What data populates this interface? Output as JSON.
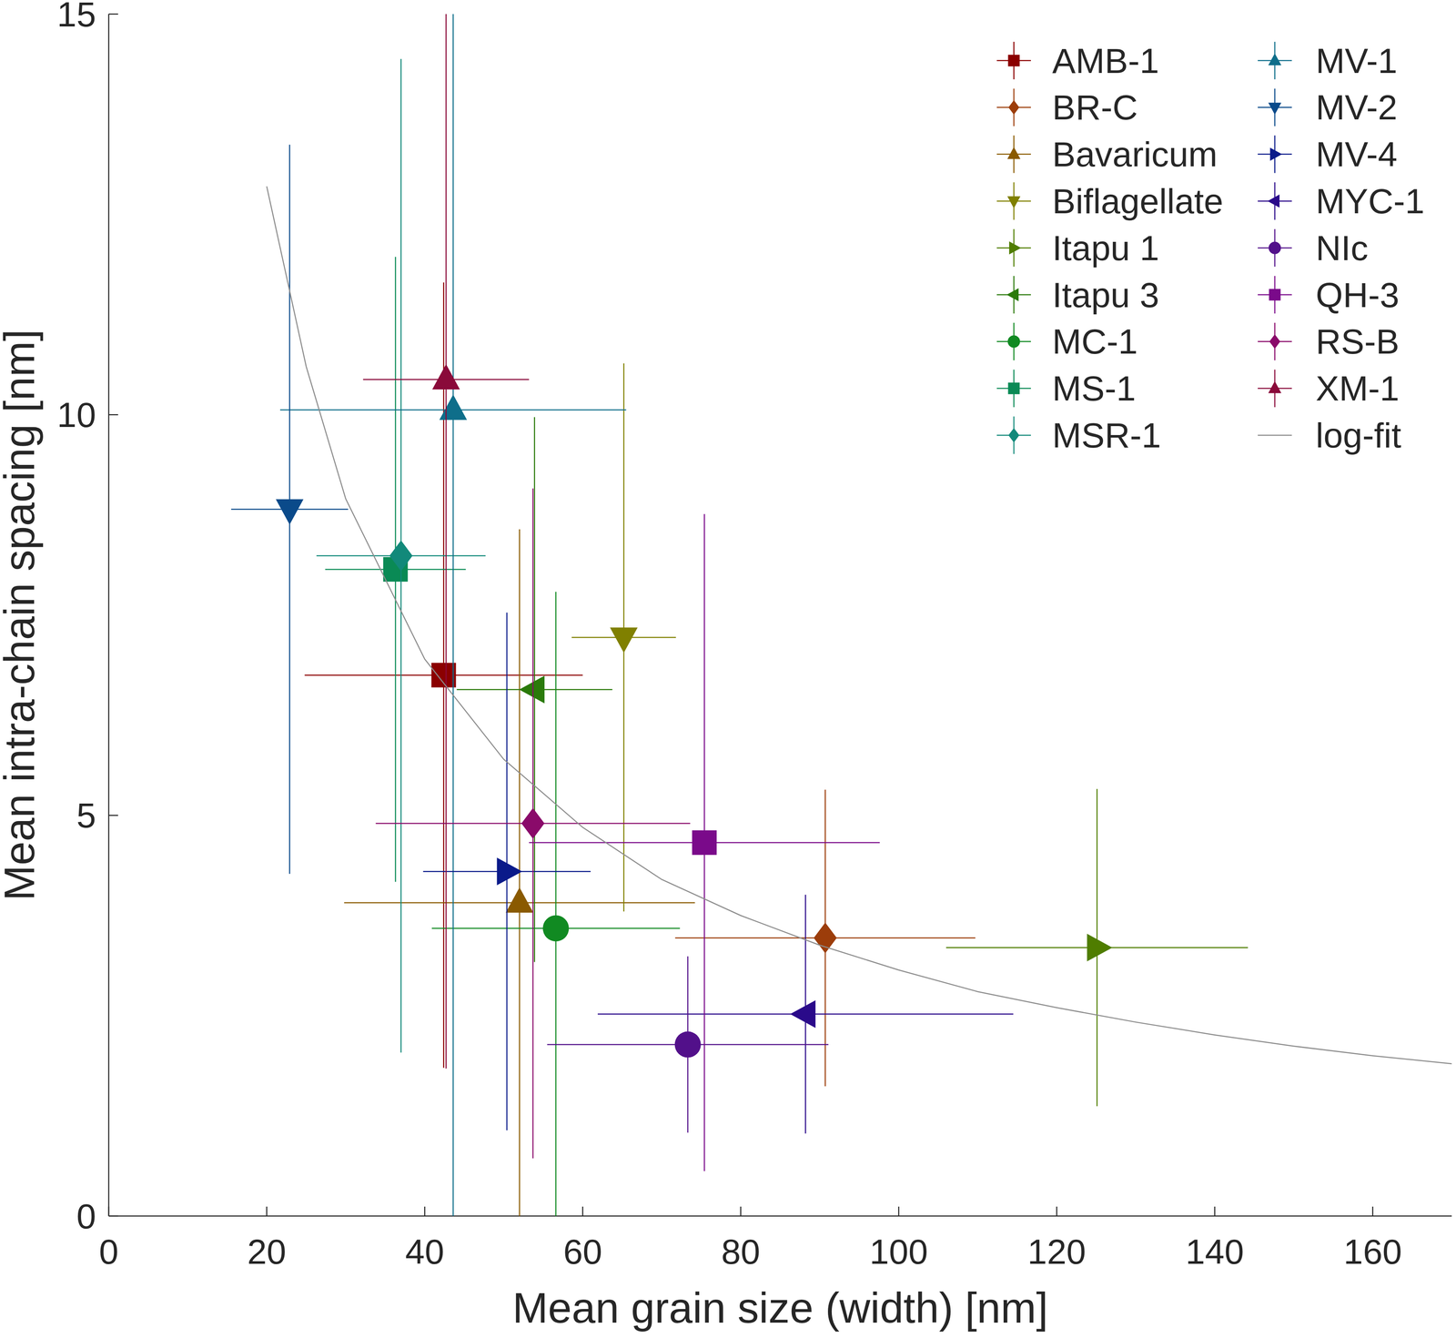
{
  "chart_data": {
    "type": "scatter",
    "x_label": "Mean grain size (width) [nm]",
    "y_label": "Mean intra-chain spacing [nm]",
    "xlim": [
      0,
      170
    ],
    "ylim": [
      0,
      15
    ],
    "xticks": [
      0,
      20,
      40,
      60,
      80,
      100,
      120,
      140,
      160
    ],
    "yticks": [
      0,
      5,
      10,
      15
    ],
    "legend": "top-right",
    "series": [
      {
        "name": "AMB-1",
        "color": "#8b0000",
        "marker": "square",
        "x": [
          42.4
        ],
        "values": [
          6.75
        ],
        "x_errors": [
          17.6
        ],
        "errors": [
          4.9
        ]
      },
      {
        "name": "BR-C",
        "color": "#9c3d0a",
        "marker": "diamond",
        "x": [
          90.7
        ],
        "values": [
          3.47
        ],
        "x_errors": [
          19.0
        ],
        "errors": [
          1.85
        ]
      },
      {
        "name": "Bavaricum",
        "color": "#8a5a00",
        "marker": "triangle-up",
        "x": [
          52.0
        ],
        "values": [
          3.91
        ],
        "x_errors": [
          22.2
        ],
        "errors": [
          4.66
        ]
      },
      {
        "name": "Biflagellate",
        "color": "#808000",
        "marker": "triangle-down",
        "x": [
          65.2
        ],
        "values": [
          7.22
        ],
        "x_errors": [
          6.6
        ],
        "errors": [
          3.42
        ]
      },
      {
        "name": "Itapu 1",
        "color": "#4f7d00",
        "marker": "triangle-right",
        "x": [
          125.1
        ],
        "values": [
          3.35
        ],
        "x_errors": [
          19.1
        ],
        "errors": [
          1.98
        ]
      },
      {
        "name": "Itapu 3",
        "color": "#2a7a0a",
        "marker": "triangle-left",
        "x": [
          53.9
        ],
        "values": [
          6.57
        ],
        "x_errors": [
          9.85
        ],
        "errors": [
          3.4
        ]
      },
      {
        "name": "MC-1",
        "color": "#118a22",
        "marker": "circle",
        "x": [
          56.6
        ],
        "values": [
          3.59
        ],
        "x_errors": [
          15.7
        ],
        "errors": [
          4.2
        ]
      },
      {
        "name": "MS-1",
        "color": "#0a8a55",
        "marker": "square",
        "x": [
          36.3
        ],
        "values": [
          8.07
        ],
        "x_errors": [
          8.9
        ],
        "errors": [
          3.9
        ]
      },
      {
        "name": "MSR-1",
        "color": "#12897a",
        "marker": "diamond",
        "x": [
          37.0
        ],
        "values": [
          8.24
        ],
        "x_errors": [
          10.7
        ],
        "errors": [
          6.2
        ]
      },
      {
        "name": "MV-1",
        "color": "#0e6e8a",
        "marker": "triangle-up",
        "x": [
          43.6
        ],
        "values": [
          10.06
        ],
        "x_errors": [
          21.9
        ],
        "errors": [
          10.5
        ]
      },
      {
        "name": "MV-2",
        "color": "#0a4a8a",
        "marker": "triangle-down",
        "x": [
          22.9
        ],
        "values": [
          8.82
        ],
        "x_errors": [
          7.4
        ],
        "errors": [
          4.55
        ]
      },
      {
        "name": "MV-4",
        "color": "#0a1a8a",
        "marker": "triangle-right",
        "x": [
          50.4
        ],
        "values": [
          4.3
        ],
        "x_errors": [
          10.6
        ],
        "errors": [
          3.23
        ]
      },
      {
        "name": "MYC-1",
        "color": "#2a0a8a",
        "marker": "triangle-left",
        "x": [
          88.2
        ],
        "values": [
          2.52
        ],
        "x_errors": [
          26.3
        ],
        "errors": [
          1.49
        ]
      },
      {
        "name": "NIc",
        "color": "#52108a",
        "marker": "circle",
        "x": [
          73.3
        ],
        "values": [
          2.14
        ],
        "x_errors": [
          17.8
        ],
        "errors": [
          1.1
        ]
      },
      {
        "name": "QH-3",
        "color": "#7a0a8a",
        "marker": "square",
        "x": [
          75.4
        ],
        "values": [
          4.66
        ],
        "x_errors": [
          22.2
        ],
        "errors": [
          4.1
        ]
      },
      {
        "name": "RS-B",
        "color": "#8a0a6a",
        "marker": "diamond",
        "x": [
          53.7
        ],
        "values": [
          4.9
        ],
        "x_errors": [
          19.9
        ],
        "errors": [
          4.18
        ]
      },
      {
        "name": "XM-1",
        "color": "#8a0a3a",
        "marker": "triangle-up",
        "x": [
          42.7
        ],
        "values": [
          10.44
        ],
        "x_errors": [
          10.5
        ],
        "errors": [
          8.6
        ]
      },
      {
        "name": "log-fit",
        "type": "line",
        "color": "#8c8c8c",
        "line_style": "solid",
        "x": [
          20,
          25,
          30,
          40,
          50,
          60,
          70,
          80,
          90,
          100,
          110,
          120,
          130,
          140,
          150,
          160,
          170
        ],
        "values": [
          12.85,
          10.6,
          8.95,
          6.95,
          5.7,
          4.85,
          4.2,
          3.75,
          3.38,
          3.07,
          2.8,
          2.6,
          2.42,
          2.26,
          2.12,
          2.0,
          1.9
        ]
      }
    ]
  }
}
